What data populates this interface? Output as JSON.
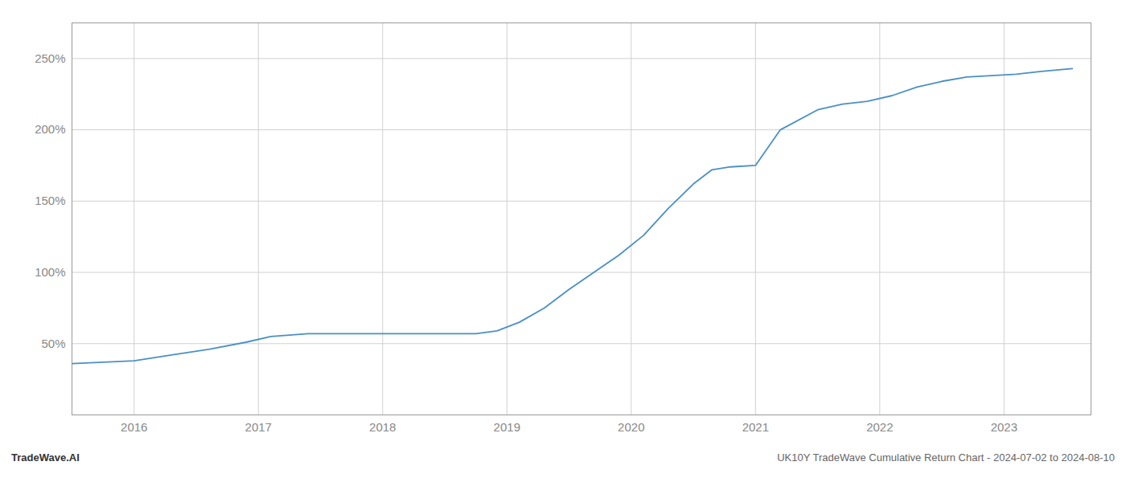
{
  "chart_data": {
    "type": "line",
    "title": "UK10Y TradeWave Cumulative Return Chart - 2024-07-02 to 2024-08-10",
    "annotations": [
      "TradeWave.AI"
    ],
    "x": [
      2015.5,
      2015.75,
      2016.0,
      2016.3,
      2016.6,
      2016.9,
      2017.1,
      2017.4,
      2017.7,
      2017.95,
      2018.1,
      2018.3,
      2018.5,
      2018.75,
      2018.92,
      2019.1,
      2019.3,
      2019.5,
      2019.7,
      2019.9,
      2020.1,
      2020.3,
      2020.5,
      2020.65,
      2020.8,
      2021.0,
      2021.2,
      2021.5,
      2021.7,
      2021.9,
      2022.1,
      2022.3,
      2022.5,
      2022.7,
      2022.9,
      2023.1,
      2023.3,
      2023.55
    ],
    "values": [
      36,
      37,
      38,
      42,
      46,
      51,
      55,
      57,
      57,
      57,
      57,
      57,
      57,
      57,
      59,
      65,
      75,
      88,
      100,
      112,
      126,
      145,
      162,
      172,
      174,
      175,
      200,
      214,
      218,
      220,
      224,
      230,
      234,
      237,
      238,
      239,
      241,
      243
    ],
    "color": "#4a90c4",
    "xlim": [
      2015.5,
      2023.7
    ],
    "ylim": [
      0,
      275
    ],
    "xticks": [
      2016,
      2017,
      2018,
      2019,
      2020,
      2021,
      2022,
      2023
    ],
    "yticks": [
      {
        "value": 50,
        "label": "50%"
      },
      {
        "value": 100,
        "label": "100%"
      },
      {
        "value": 150,
        "label": "150%"
      },
      {
        "value": 200,
        "label": "200%"
      },
      {
        "value": 250,
        "label": "250%"
      }
    ],
    "grid": true
  }
}
